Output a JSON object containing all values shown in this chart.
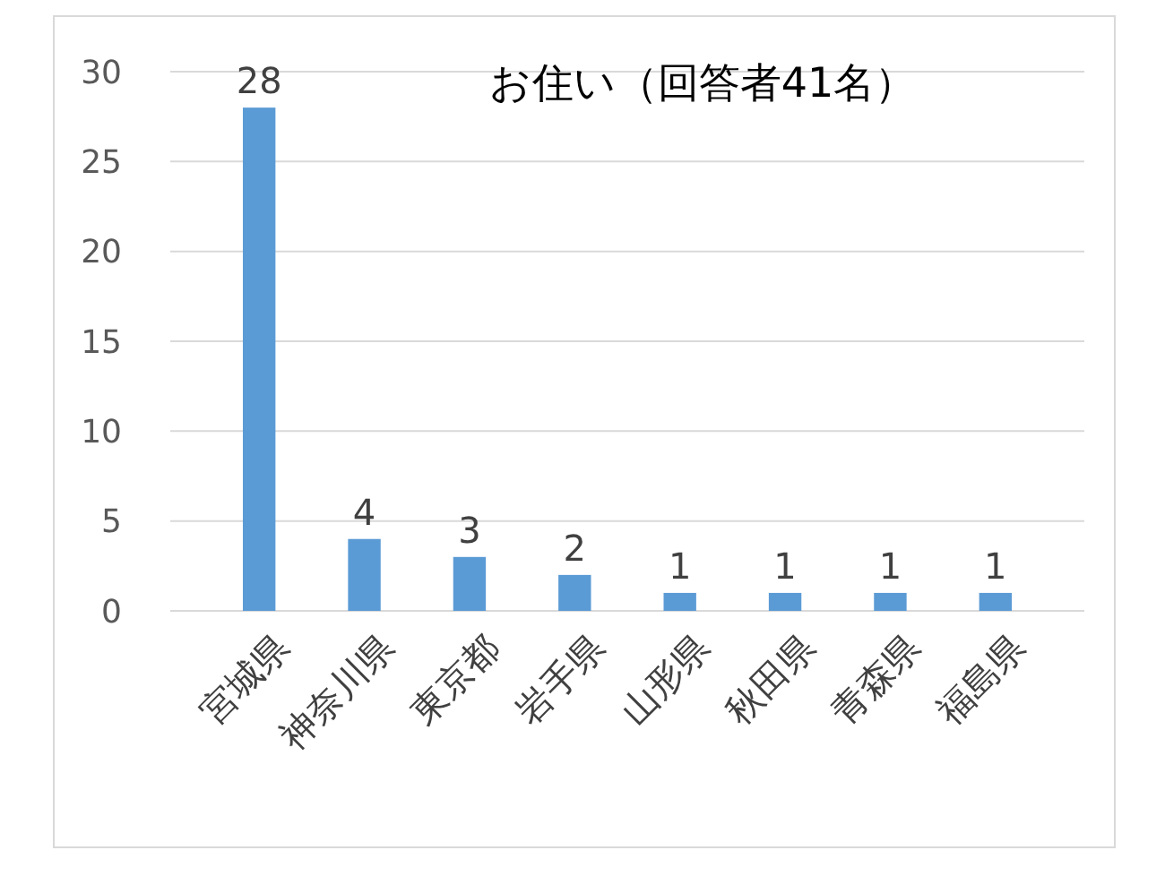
{
  "chart_data": {
    "type": "bar",
    "title": "お住い（回答者41名）",
    "categories": [
      "宮城県",
      "神奈川県",
      "東京都",
      "岩手県",
      "山形県",
      "秋田県",
      "青森県",
      "福島県"
    ],
    "values": [
      28,
      4,
      3,
      2,
      1,
      1,
      1,
      1
    ],
    "color": "#5b9bd5",
    "ylim": [
      0,
      30
    ],
    "yticks": [
      0,
      5,
      10,
      15,
      20,
      25,
      30
    ],
    "grid": "y",
    "data_labels": true
  }
}
